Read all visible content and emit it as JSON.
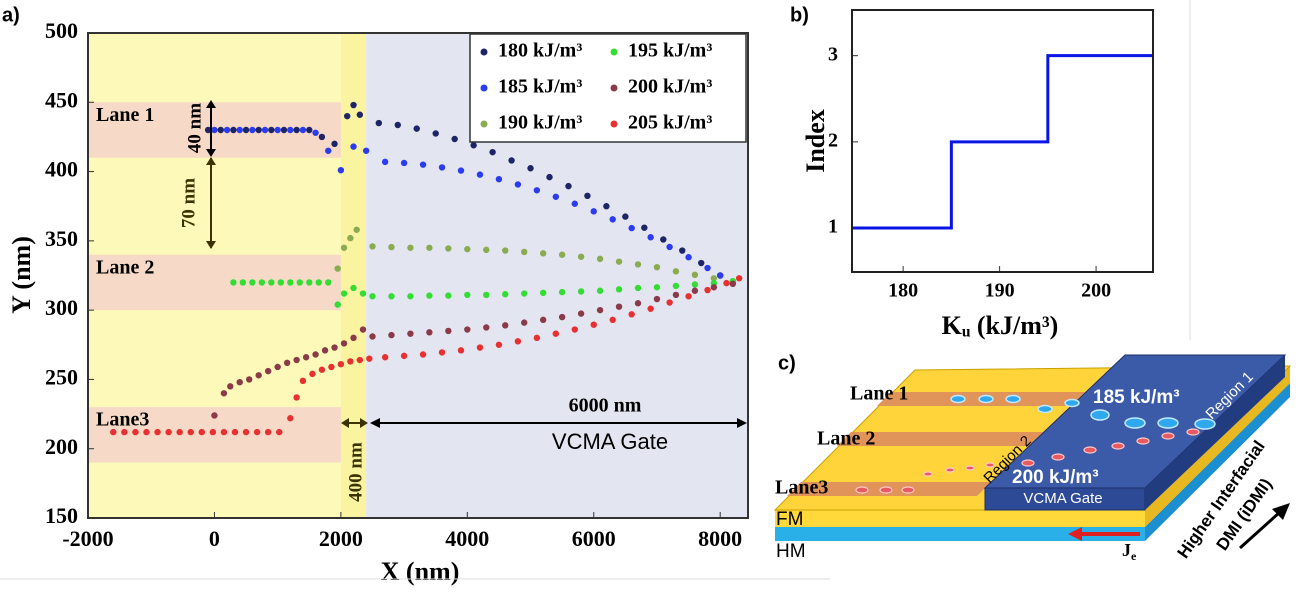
{
  "chart_data": [
    {
      "type": "scatter",
      "panel": "a)",
      "xlabel": "X (nm)",
      "ylabel": "Y (nm)",
      "xlim": [
        -2000,
        8440
      ],
      "ylim": [
        150,
        500
      ],
      "xticks": [
        -2000,
        0,
        2000,
        4000,
        6000,
        8000
      ],
      "yticks": [
        150,
        200,
        250,
        300,
        350,
        400,
        450,
        500
      ],
      "legend": "upper right",
      "regions": [
        {
          "x": [
            -2000,
            2000
          ],
          "color": "#fdf9b8"
        },
        {
          "x": [
            2000,
            2400
          ],
          "color": "#faf3a0"
        },
        {
          "x": [
            2400,
            8440
          ],
          "color": "#e3e5f1"
        }
      ],
      "lanes": [
        {
          "label": "Lane 1",
          "y": [
            410,
            450
          ]
        },
        {
          "label": "Lane 2",
          "y": [
            300,
            340
          ]
        },
        {
          "label": "Lane3",
          "y": [
            190,
            230
          ]
        }
      ],
      "lane_color": "#f6d9c6",
      "annotations": [
        "40 nm",
        "70 nm",
        "400 nm",
        "6000 nm",
        "VCMA Gate"
      ],
      "series": [
        {
          "name": "180 kJ/m³",
          "color": "#1d2566",
          "x": [
            -100,
            100,
            300,
            500,
            700,
            900,
            1100,
            1300,
            1500,
            1700,
            1900,
            2100,
            2200,
            2300,
            2600,
            2900,
            3200,
            3500,
            3800,
            4100,
            4400,
            4700,
            5000,
            5300,
            5600,
            5900,
            6200,
            6500,
            6800,
            7100,
            7400,
            7700,
            8000
          ],
          "y": [
            430,
            430,
            430,
            430,
            430,
            430,
            430,
            430,
            430,
            425,
            420,
            440,
            448,
            441,
            435,
            433.6,
            431,
            427.5,
            423.5,
            419,
            414,
            408,
            402.4,
            396,
            389.5,
            382.5,
            375,
            367.5,
            359.5,
            351,
            343,
            334,
            325
          ]
        },
        {
          "name": "185 kJ/m³",
          "color": "#2a3bf0",
          "x": [
            0,
            200,
            400,
            600,
            800,
            1000,
            1200,
            1400,
            1600,
            1800,
            2000,
            2200,
            2400,
            2700,
            3000,
            3300,
            3600,
            3900,
            4200,
            4500,
            4800,
            5100,
            5400,
            5700,
            6000,
            6300,
            6600,
            6900,
            7200,
            7500,
            7800,
            8000
          ],
          "y": [
            430,
            430,
            430,
            430,
            430,
            430,
            430,
            430,
            428,
            415,
            401,
            418,
            415,
            407,
            406.2,
            405,
            403,
            400.7,
            397.8,
            394.5,
            390.7,
            386.5,
            381.8,
            376.8,
            371.3,
            365.5,
            359.2,
            352.6,
            345.6,
            338.2,
            330.4,
            325
          ]
        },
        {
          "name": "190 kJ/m³",
          "color": "#8aab50",
          "x": [
            1950,
            2050,
            2150,
            2250,
            2500,
            2800,
            3100,
            3400,
            3700,
            4000,
            4300,
            4600,
            4900,
            5200,
            5500,
            5800,
            6100,
            6400,
            6700,
            7000,
            7300,
            7600,
            7900,
            8200
          ],
          "y": [
            330,
            345,
            352,
            358,
            346,
            345.5,
            345,
            345,
            344.5,
            344,
            343.5,
            343,
            342,
            341,
            340,
            338.5,
            337,
            335,
            333,
            331,
            328,
            325.5,
            323,
            320
          ]
        },
        {
          "name": "195 kJ/m³",
          "color": "#33dd33",
          "x": [
            300,
            450,
            600,
            750,
            900,
            1050,
            1200,
            1350,
            1500,
            1650,
            1800,
            1950,
            2050,
            2200,
            2350,
            2500,
            2800,
            3100,
            3400,
            3700,
            4000,
            4300,
            4600,
            4900,
            5200,
            5500,
            5800,
            6100,
            6400,
            6700,
            7000,
            7300,
            7600,
            7900,
            8200
          ],
          "y": [
            320,
            320,
            320,
            320,
            320,
            320,
            320,
            320,
            320,
            320,
            320,
            304,
            312,
            316,
            312,
            310,
            310,
            310,
            310.5,
            310.5,
            311,
            311,
            311.5,
            312,
            312.5,
            313,
            313.5,
            314,
            315,
            316,
            316.5,
            317.5,
            318.5,
            319.5,
            321
          ]
        },
        {
          "name": "200 kJ/m³",
          "color": "#8b3a4a",
          "x": [
            0,
            150,
            250,
            400,
            550,
            700,
            850,
            1000,
            1150,
            1300,
            1450,
            1600,
            1750,
            1900,
            2050,
            2200,
            2350,
            2500,
            2800,
            3100,
            3400,
            3700,
            4000,
            4300,
            4600,
            4900,
            5200,
            5500,
            5800,
            6100,
            6400,
            6700,
            7000,
            7300,
            7600,
            7900,
            8200
          ],
          "y": [
            224,
            240,
            245,
            248,
            250,
            253,
            256,
            259,
            262,
            264,
            266,
            268,
            271,
            273,
            276,
            280,
            286,
            281,
            282,
            283,
            284,
            285,
            286,
            287.5,
            289,
            291,
            293,
            295,
            297.5,
            300,
            302.5,
            305,
            308,
            311,
            314,
            316.5,
            319
          ]
        },
        {
          "name": "205 kJ/m³",
          "color": "#e83030",
          "x": [
            -1600,
            -1425,
            -1250,
            -1075,
            -900,
            -725,
            -550,
            -375,
            -200,
            -25,
            150,
            325,
            500,
            675,
            850,
            1025,
            1200,
            1300,
            1400,
            1550,
            1700,
            1850,
            2000,
            2150,
            2300,
            2450,
            2700,
            3000,
            3300,
            3600,
            3900,
            4200,
            4500,
            4800,
            5100,
            5400,
            5700,
            6000,
            6300,
            6600,
            6900,
            7200,
            7500,
            7800,
            8100,
            8300
          ],
          "y": [
            212,
            212,
            212,
            212,
            212,
            212,
            212,
            212,
            212,
            212,
            212,
            212,
            212,
            212,
            212,
            212,
            222,
            237,
            249,
            254,
            257,
            259,
            261,
            263,
            264,
            265,
            266,
            267,
            268,
            269.5,
            271,
            273,
            275,
            277.5,
            280,
            283,
            286,
            289.5,
            293,
            297,
            301,
            305.5,
            310,
            314.5,
            319.5,
            323
          ]
        }
      ]
    },
    {
      "type": "line",
      "panel": "b)",
      "xlabel": "Kᵤ (kJ/m³)",
      "ylabel": "Index",
      "xlim": [
        174.7,
        205.9
      ],
      "ylim": [
        0.49,
        3.53
      ],
      "xticks": [
        180,
        190,
        200
      ],
      "yticks": [
        1,
        2,
        3
      ],
      "series": [
        {
          "color": "#0a14e6",
          "x": [
            174.7,
            185,
            185,
            195,
            195,
            205.9
          ],
          "y": [
            1,
            1,
            2,
            2,
            3,
            3
          ]
        }
      ]
    }
  ],
  "diagram": {
    "panel": "c)",
    "lanes": [
      "Lane 1",
      "Lane 2",
      "Lane3"
    ],
    "gate_values": [
      "185 kJ/m³",
      "200 kJ/m³"
    ],
    "regions": [
      "Region 1",
      "Region 2"
    ],
    "gate": "VCMA Gate",
    "layers": [
      "FM",
      "HM"
    ],
    "current": "J",
    "current_sub": "e",
    "dmi": [
      "Higher Interfacial",
      "DMI (iDMI)"
    ]
  }
}
